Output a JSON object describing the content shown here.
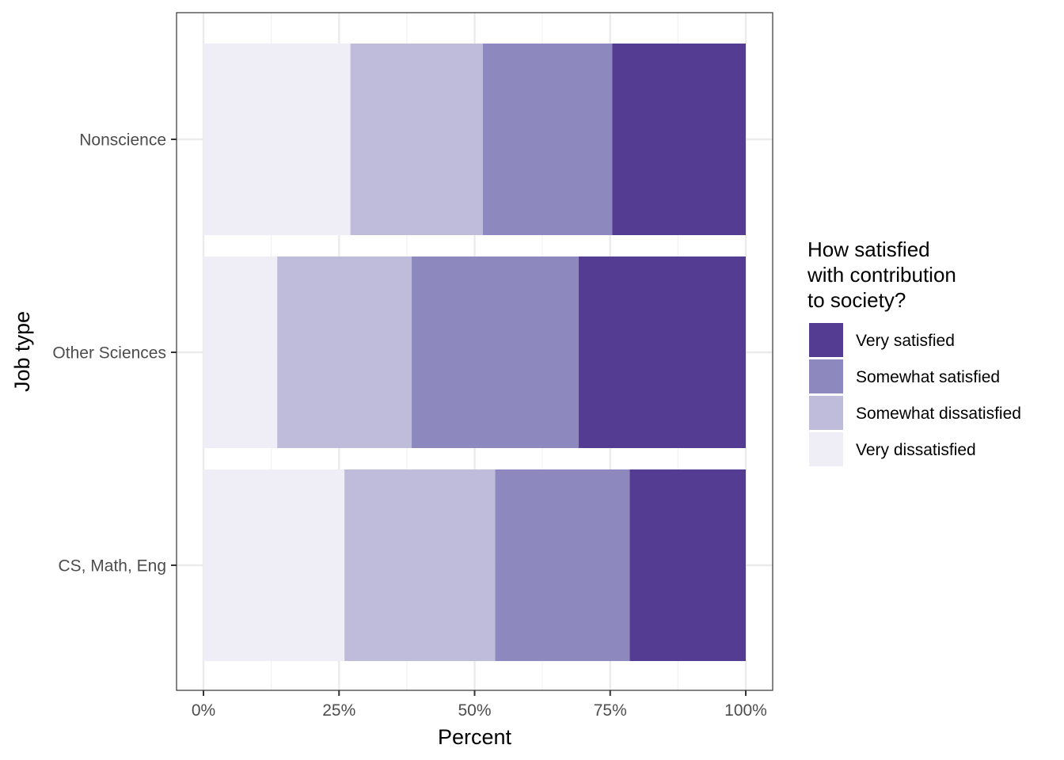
{
  "chart_data": {
    "type": "bar",
    "orientation": "horizontal",
    "stacked": "percent",
    "categories": [
      "CS, Math, Eng",
      "Other Sciences",
      "Nonscience"
    ],
    "series": [
      {
        "name": "Very dissatisfied",
        "color": "#efedf5",
        "values": [
          26.0,
          13.6,
          27.1
        ]
      },
      {
        "name": "Somewhat dissatisfied",
        "color": "#bfbcdb",
        "values": [
          27.8,
          24.8,
          24.4
        ]
      },
      {
        "name": "Somewhat satisfied",
        "color": "#8d88bd",
        "values": [
          24.8,
          30.8,
          23.9
        ]
      },
      {
        "name": "Very satisfied",
        "color": "#553c93",
        "values": [
          21.4,
          30.8,
          24.6
        ]
      }
    ],
    "xlabel": "Percent",
    "ylabel": "Job type",
    "xlim": [
      0,
      100
    ],
    "xticks": [
      "0%",
      "25%",
      "50%",
      "75%",
      "100%"
    ],
    "grid": true,
    "legend": {
      "title": "How satisfied\nwith contribution\nto society?",
      "position": "right",
      "order": [
        "Very satisfied",
        "Somewhat satisfied",
        "Somewhat dissatisfied",
        "Very dissatisfied"
      ]
    }
  }
}
